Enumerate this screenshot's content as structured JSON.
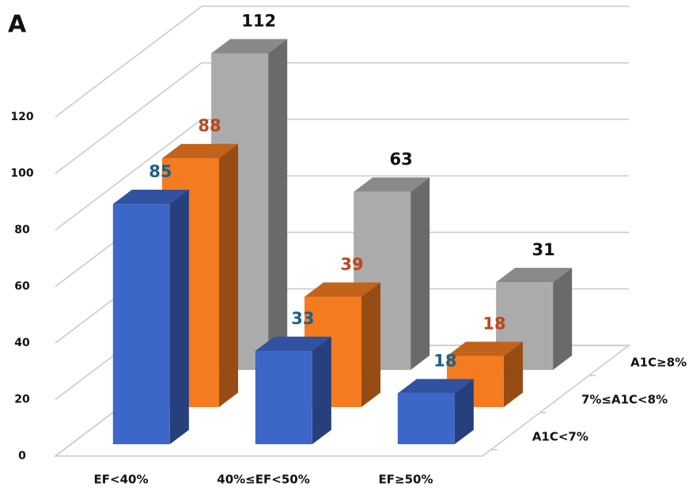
{
  "panel_label": "A",
  "chart_data": {
    "type": "bar3d",
    "categories": [
      "EF<40%",
      "40%≤EF<50%",
      "EF≥50%"
    ],
    "series": [
      {
        "name": "A1C<7%",
        "color": "#3d66c9",
        "label_color": "#1f5f8b",
        "values": [
          85,
          33,
          18
        ]
      },
      {
        "name": "7%≤A1C<8%",
        "color": "#f47b20",
        "label_color": "#c0441a",
        "values": [
          88,
          39,
          18
        ]
      },
      {
        "name": "A1C≥8%",
        "color": "#ababab",
        "label_color": "#111111",
        "values": [
          112,
          63,
          31
        ]
      }
    ],
    "ylim": [
      0,
      120
    ],
    "yticks": [
      0,
      20,
      40,
      60,
      80,
      100,
      120
    ],
    "grid": true
  }
}
